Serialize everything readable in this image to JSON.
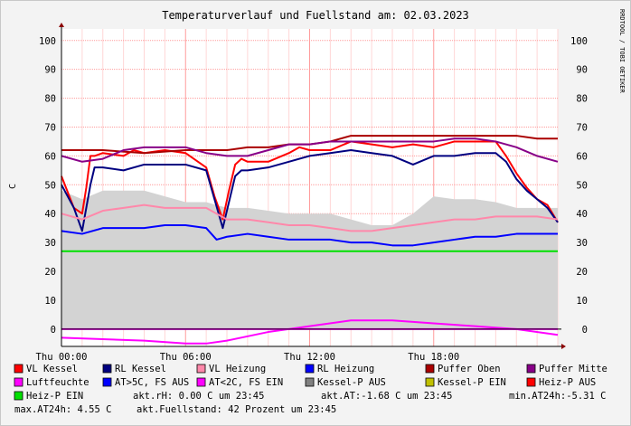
{
  "chart_data": {
    "type": "line",
    "title": "Temperaturverlauf und Fuellstand am: 02.03.2023",
    "ylabel": "C",
    "watermark": "RRDTOOL / TOBI OETIKER",
    "ylim": [
      -6,
      104
    ],
    "yticks": [
      0,
      10,
      20,
      30,
      40,
      50,
      60,
      70,
      80,
      90,
      100
    ],
    "x_hours_range": [
      0,
      24
    ],
    "xticks": [
      {
        "h": 0,
        "label": "Thu 00:00"
      },
      {
        "h": 6,
        "label": "Thu 06:00"
      },
      {
        "h": 12,
        "label": "Thu 12:00"
      },
      {
        "h": 18,
        "label": "Thu 18:00"
      }
    ],
    "grid": true,
    "legend_placement": "bottom",
    "series": [
      {
        "name": "VL Kessel",
        "color": "#ff0000",
        "x": [
          0,
          0.6,
          1.0,
          1.2,
          1.4,
          1.6,
          2,
          3,
          3.5,
          4,
          5,
          6,
          7,
          7.4,
          7.8,
          8.1,
          8.4,
          8.7,
          9,
          10,
          11,
          11.5,
          12,
          13,
          14,
          15,
          16,
          17,
          18,
          19,
          20,
          21,
          21.5,
          22,
          22.5,
          23,
          23.5,
          24
        ],
        "y": [
          53,
          42,
          40,
          49,
          60,
          60,
          61,
          60,
          62,
          61,
          62,
          61,
          56,
          46,
          38,
          48,
          57,
          59,
          58,
          58,
          61,
          63,
          62,
          62,
          65,
          64,
          63,
          64,
          63,
          65,
          65,
          65,
          60,
          54,
          49,
          45,
          43,
          37
        ]
      },
      {
        "name": "RL Kessel",
        "color": "#000080",
        "x": [
          0,
          0.6,
          1.0,
          1.2,
          1.4,
          1.6,
          2,
          3,
          4,
          5,
          6,
          7,
          7.4,
          7.8,
          8.1,
          8.4,
          8.7,
          9,
          10,
          11,
          12,
          13,
          14,
          15,
          16,
          17,
          18,
          19,
          20,
          21,
          21.5,
          22,
          22.5,
          23,
          23.5,
          24
        ],
        "y": [
          50,
          42,
          34,
          42,
          50,
          56,
          56,
          55,
          57,
          57,
          57,
          55,
          45,
          35,
          44,
          53,
          55,
          55,
          56,
          58,
          60,
          61,
          62,
          61,
          60,
          57,
          60,
          60,
          61,
          61,
          58,
          52,
          48,
          45,
          42,
          37
        ]
      },
      {
        "name": "VL Heizung",
        "color": "#ff88aa",
        "x": [
          0,
          1,
          2,
          3,
          4,
          5,
          6,
          7,
          7.5,
          8,
          9,
          10,
          11,
          12,
          13,
          14,
          15,
          16,
          17,
          18,
          19,
          20,
          21,
          22,
          23,
          24
        ],
        "y": [
          40,
          38,
          41,
          42,
          43,
          42,
          42,
          42,
          40,
          38,
          38,
          37,
          36,
          36,
          35,
          34,
          34,
          35,
          36,
          37,
          38,
          38,
          39,
          39,
          39,
          38
        ]
      },
      {
        "name": "RL Heizung",
        "color": "#0000ff",
        "x": [
          0,
          1,
          2,
          3,
          4,
          5,
          6,
          7,
          7.5,
          8,
          9,
          10,
          11,
          12,
          13,
          14,
          15,
          16,
          17,
          18,
          19,
          20,
          21,
          22,
          23,
          24
        ],
        "y": [
          34,
          33,
          35,
          35,
          35,
          36,
          36,
          35,
          31,
          32,
          33,
          32,
          31,
          31,
          31,
          30,
          30,
          29,
          29,
          30,
          31,
          32,
          32,
          33,
          33,
          33
        ]
      },
      {
        "name": "Puffer Oben",
        "color": "#aa0000",
        "x": [
          0,
          2,
          4,
          6,
          7,
          8,
          9,
          10,
          11,
          12,
          13,
          14,
          15,
          16,
          17,
          18,
          19,
          20,
          21,
          22,
          23,
          24
        ],
        "y": [
          62,
          62,
          61,
          62,
          62,
          62,
          63,
          63,
          64,
          64,
          65,
          67,
          67,
          67,
          67,
          67,
          67,
          67,
          67,
          67,
          66,
          66
        ]
      },
      {
        "name": "Puffer Mitte",
        "color": "#880088",
        "x": [
          0,
          1,
          2,
          3,
          4,
          5,
          6,
          7,
          8,
          9,
          10,
          11,
          12,
          13,
          14,
          15,
          16,
          17,
          18,
          19,
          20,
          21,
          22,
          23,
          24
        ],
        "y": [
          60,
          58,
          59,
          62,
          63,
          63,
          63,
          61,
          60,
          60,
          62,
          64,
          64,
          65,
          65,
          65,
          65,
          65,
          65,
          66,
          66,
          65,
          63,
          60,
          58
        ]
      },
      {
        "name": "Luftfeuchte",
        "color": "#ff00ff",
        "x": [
          0,
          2,
          4,
          6,
          7,
          8,
          10,
          12,
          14,
          16,
          18,
          20,
          22,
          24
        ],
        "y": [
          -3,
          -3.5,
          -4,
          -5,
          -5,
          -4,
          -1,
          1,
          3,
          3,
          2,
          1,
          0,
          -2
        ]
      },
      {
        "name": "AT>5C, FS AUS",
        "color": "#0000ff",
        "x": [],
        "y": []
      },
      {
        "name": "AT<2C, FS EIN",
        "color": "#ff00ff",
        "x": [
          0,
          24
        ],
        "y": [
          0,
          0
        ]
      },
      {
        "name": "Kessel-P AUS",
        "color": "#808080",
        "x": [],
        "y": []
      },
      {
        "name": "Kessel-P EIN",
        "color": "#c0c000",
        "x": [],
        "y": []
      },
      {
        "name": "Heiz-P AUS",
        "color": "#ff0000",
        "x": [],
        "y": []
      },
      {
        "name": "Heiz-P EIN",
        "color": "#00e000",
        "x": [
          0,
          4,
          6,
          8,
          10,
          12,
          14,
          16,
          18,
          20,
          22,
          24
        ],
        "y": [
          27,
          27,
          27,
          27,
          27,
          27,
          27,
          27,
          27,
          27,
          27,
          27
        ]
      }
    ],
    "area": {
      "name": "Fuellstand",
      "color": "#d3d3d3",
      "x": [
        0,
        1,
        2,
        3,
        4,
        5,
        6,
        7,
        8,
        9,
        10,
        11,
        12,
        13,
        14,
        15,
        16,
        17,
        18,
        19,
        20,
        21,
        22,
        23,
        24
      ],
      "y": [
        48,
        45,
        48,
        48,
        48,
        46,
        44,
        44,
        42,
        42,
        41,
        40,
        40,
        40,
        38,
        36,
        36,
        40,
        46,
        45,
        45,
        44,
        42,
        42,
        42
      ]
    },
    "legend_rows": [
      [
        "VL Kessel",
        "RL Kessel",
        "VL Heizung",
        "RL Heizung",
        "Puffer Oben",
        "Puffer Mitte"
      ],
      [
        "Luftfeuchte",
        "AT>5C, FS AUS",
        "AT<2C, FS EIN",
        "Kessel-P AUS",
        "Kessel-P EIN",
        "Heiz-P AUS"
      ]
    ],
    "legend_last_row_label": "Heiz-P EIN",
    "legend_last_row_color": "#00e000",
    "info": {
      "rh": "akt.rH: 0.00 C um 23:45",
      "at": "akt.AT:-1.68 C um 23:45",
      "min": "min.AT24h:-5.31 C",
      "max": "max.AT24h: 4.55 C",
      "fill": "akt.Fuellstand:   42 Prozent um 23:45"
    }
  }
}
